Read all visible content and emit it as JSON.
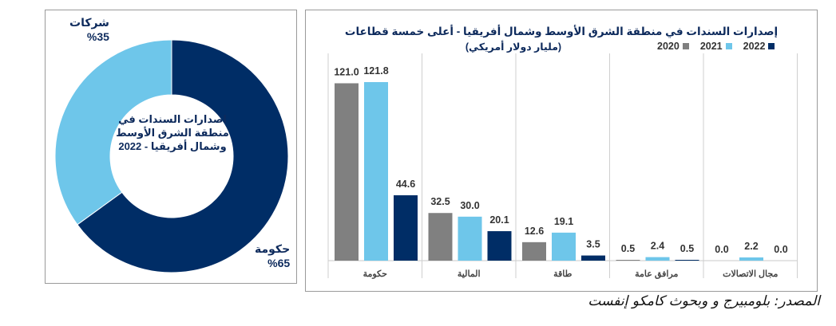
{
  "donut": {
    "center_title": "اصدارات السندات في منطقة الشرق الأوسط وشمال أفريقيا - 2022",
    "segments": [
      {
        "label": "حكومة",
        "value_text": "%65",
        "value": 65,
        "color": "#002d66"
      },
      {
        "label": "شركات",
        "value_text": "%35",
        "value": 35,
        "color": "#6ec6ea"
      }
    ]
  },
  "bar_chart_header": {
    "title_line1": "إصدارات السندات في منطقة الشرق الأوسط وشمال أفريقيا - أعلى خمسة قطاعات",
    "title_line2": "(مليار دولار أمريكي)"
  },
  "source": "المصدر: بلومبيرج و وبحوث كامكو إنفست",
  "chart_data": [
    {
      "type": "pie",
      "title": "اصدارات السندات في منطقة الشرق الأوسط وشمال أفريقيا - 2022",
      "categories": [
        "حكومة",
        "شركات"
      ],
      "values": [
        65,
        35
      ],
      "colors": [
        "#002d66",
        "#6ec6ea"
      ]
    },
    {
      "type": "bar",
      "title": "إصدارات السندات في منطقة الشرق الأوسط وشمال أفريقيا - أعلى خمسة قطاعات (مليار دولار أمريكي)",
      "categories": [
        "حكومة",
        "المالية",
        "طاقة",
        "مرافق عامة",
        "مجال الاتصالات"
      ],
      "series": [
        {
          "name": "2020",
          "color": "#808080",
          "values": [
            121.0,
            32.5,
            12.6,
            0.5,
            0.0
          ],
          "labels": [
            "121.0",
            "32.5",
            "12.6",
            "0.5",
            "0.0"
          ]
        },
        {
          "name": "2021",
          "color": "#6ec6ea",
          "values": [
            121.8,
            30.0,
            19.1,
            2.4,
            2.2
          ],
          "labels": [
            "121.8",
            "30.0",
            "19.1",
            "2.4",
            "2.2"
          ]
        },
        {
          "name": "2022",
          "color": "#002d66",
          "values": [
            44.6,
            20.1,
            3.5,
            0.5,
            0.0
          ],
          "labels": [
            "44.6",
            "20.1",
            "3.5",
            "0.5",
            "0.0"
          ]
        }
      ],
      "ylim": [
        0,
        121.8
      ],
      "grid": false,
      "legend_position": "top-right"
    }
  ]
}
